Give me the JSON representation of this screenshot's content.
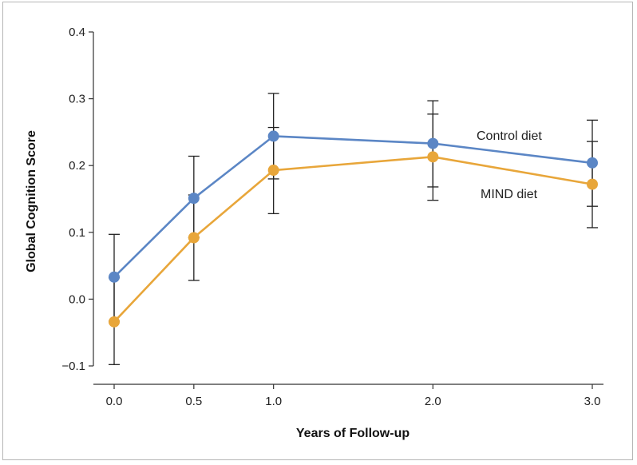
{
  "chart_data": {
    "type": "line",
    "xlabel": "Years of Follow-up",
    "ylabel": "Global Cognition Score",
    "xlim": [
      0.0,
      3.0
    ],
    "ylim": [
      -0.1,
      0.4
    ],
    "xticks": [
      "0.0",
      "0.5",
      "1.0",
      "2.0",
      "3.0"
    ],
    "yticks": [
      "0.4",
      "0.3",
      "0.2",
      "0.1",
      "0.0",
      "−0.1"
    ],
    "x": [
      0.0,
      0.5,
      1.0,
      2.0,
      3.0
    ],
    "grid": false,
    "legend": "inline labels at right end of lines",
    "series": [
      {
        "name": "Control diet",
        "color": "#5b86c5",
        "values": [
          0.033,
          0.151,
          0.244,
          0.233,
          0.204
        ],
        "error_low": [
          -0.033,
          0.092,
          0.18,
          0.168,
          0.139
        ],
        "error_high": [
          0.097,
          0.214,
          0.308,
          0.297,
          0.268
        ]
      },
      {
        "name": "MIND diet",
        "color": "#e8a63a",
        "values": [
          -0.034,
          0.092,
          0.193,
          0.213,
          0.172
        ],
        "error_low": [
          -0.098,
          0.028,
          0.128,
          0.148,
          0.107
        ],
        "error_high": [
          0.032,
          0.156,
          0.257,
          0.277,
          0.236
        ]
      }
    ]
  }
}
